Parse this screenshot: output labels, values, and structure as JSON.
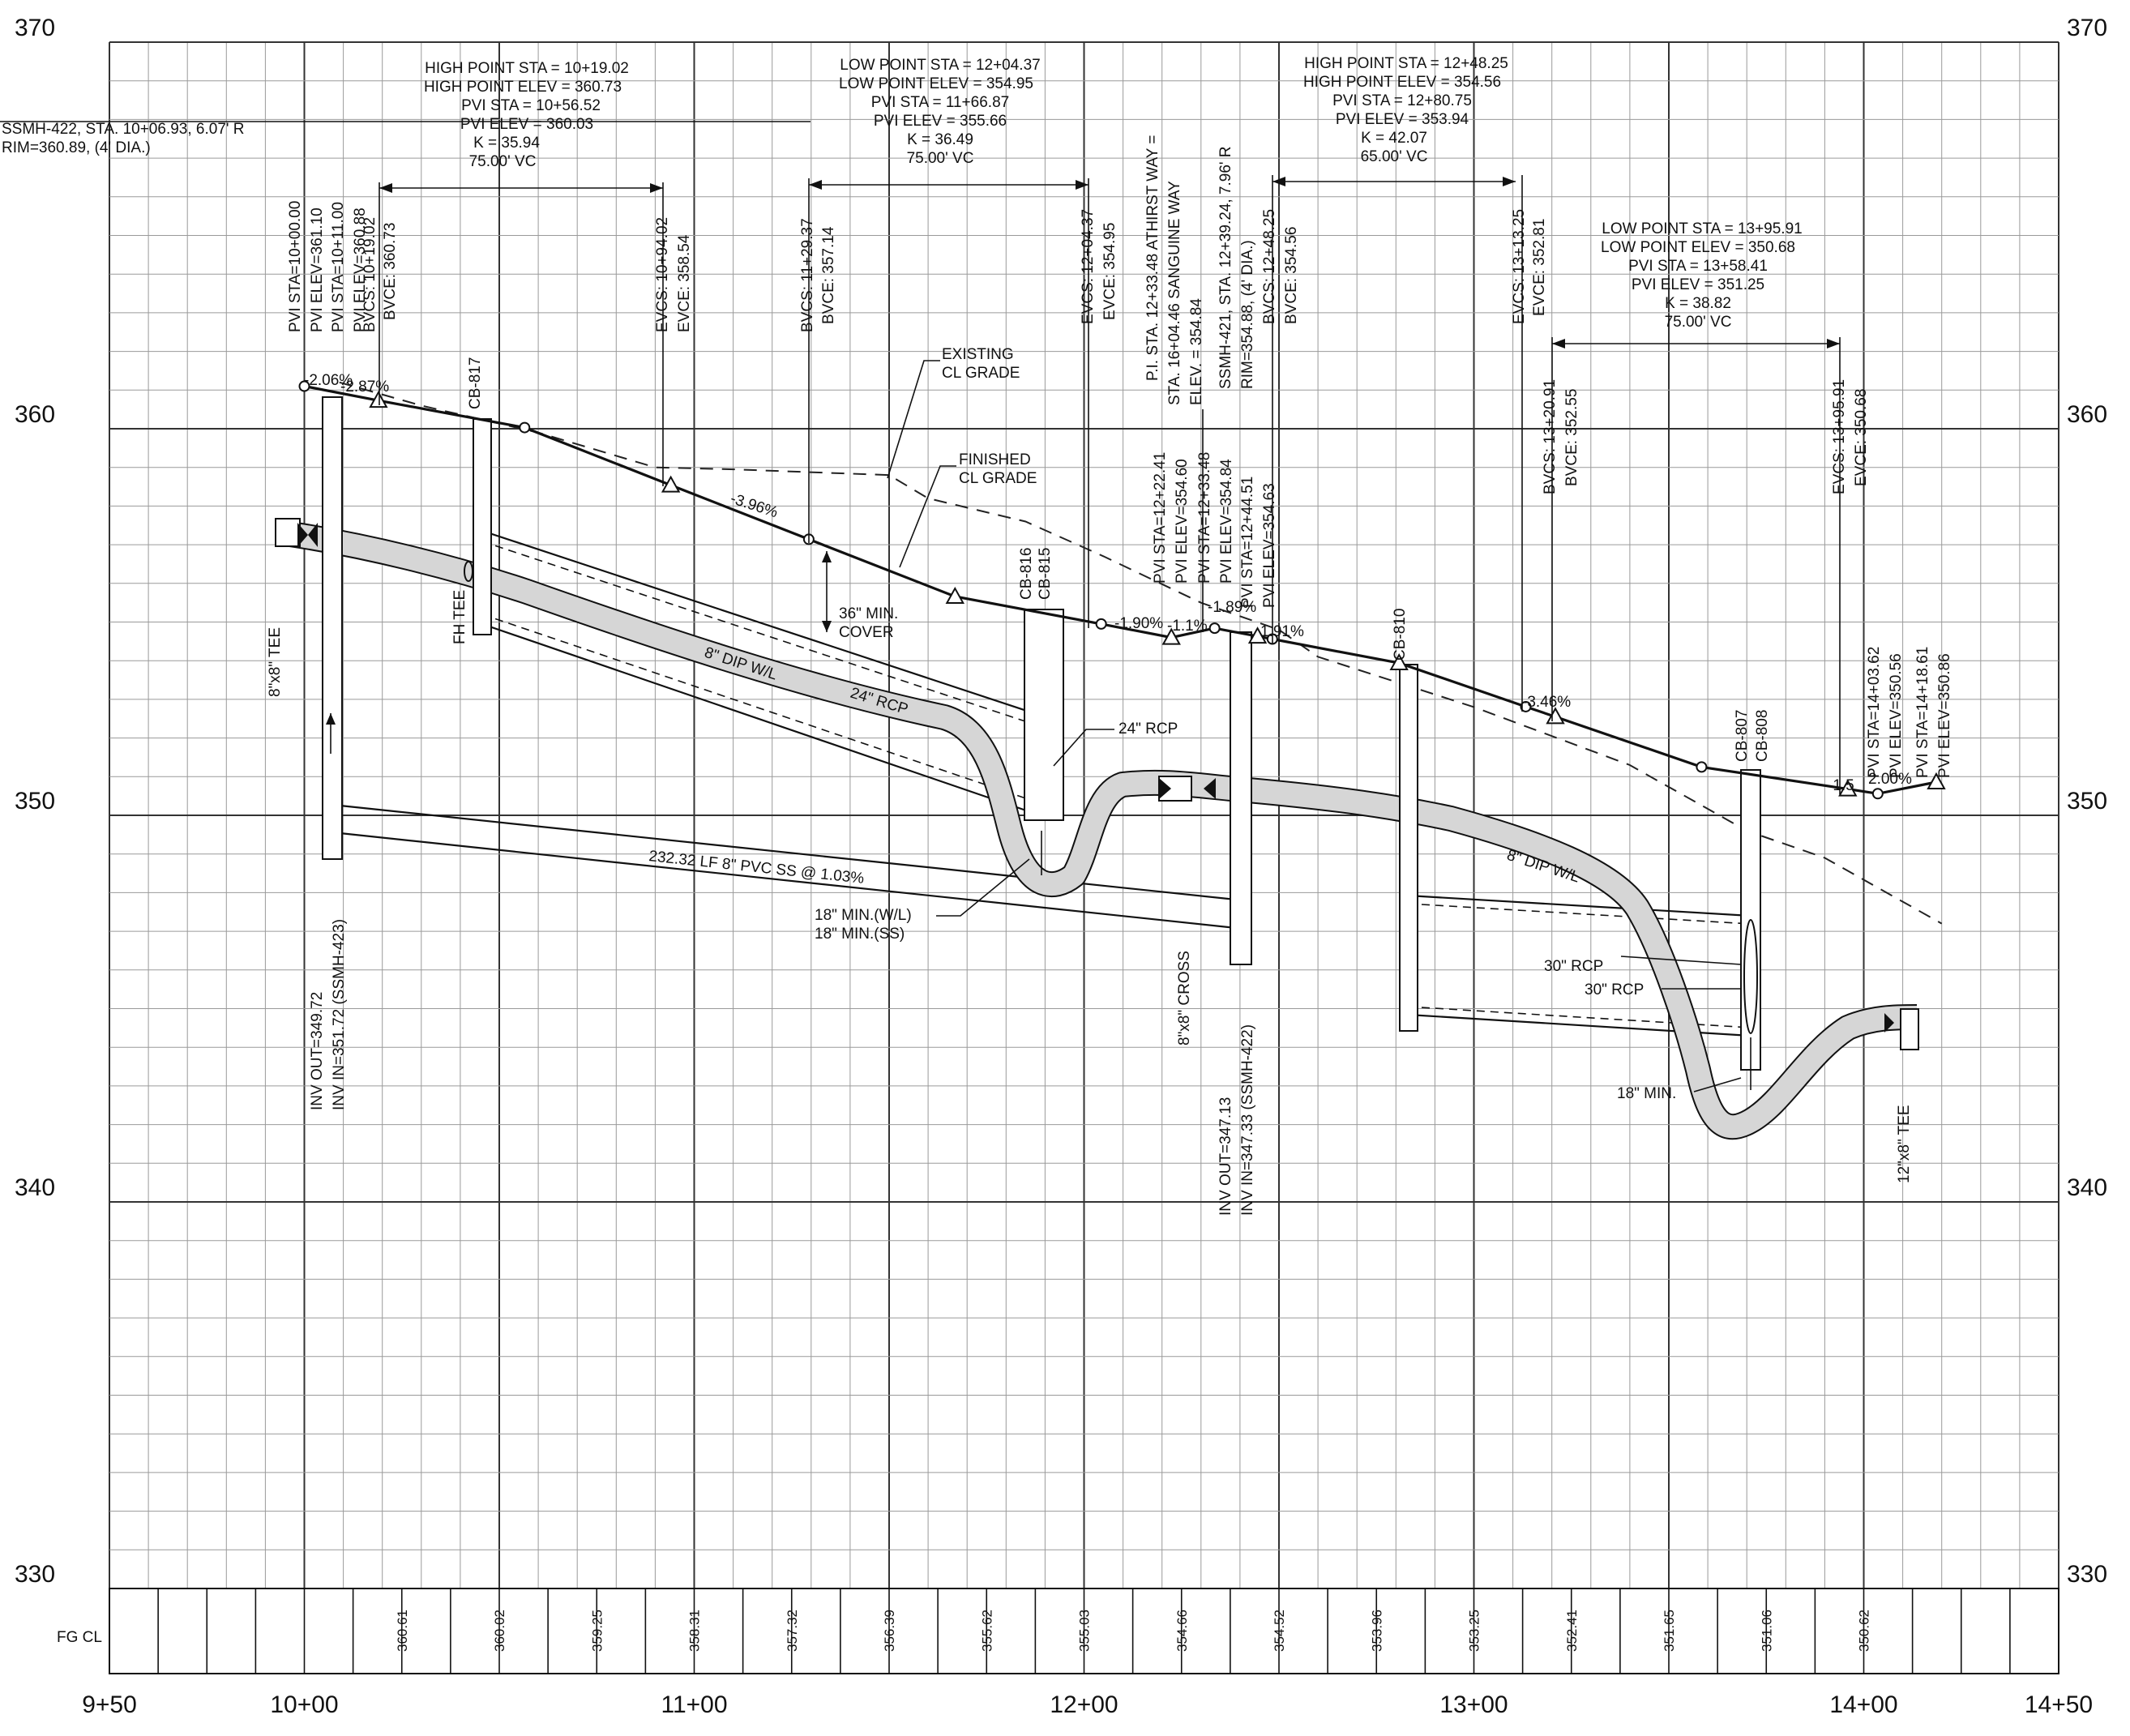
{
  "axes": {
    "y_ticks": [
      {
        "value": 370,
        "label": "370"
      },
      {
        "value": 360,
        "label": "360"
      },
      {
        "value": 350,
        "label": "350"
      },
      {
        "value": 340,
        "label": "340"
      },
      {
        "value": 330,
        "label": "330"
      }
    ],
    "x_ticks": [
      {
        "value": 950,
        "label": "9+50"
      },
      {
        "value": 1000,
        "label": "10+00"
      },
      {
        "value": 1100,
        "label": "11+00"
      },
      {
        "value": 1200,
        "label": "12+00"
      },
      {
        "value": 1300,
        "label": "13+00"
      },
      {
        "value": 1400,
        "label": "14+00"
      },
      {
        "value": 1450,
        "label": "14+50"
      }
    ],
    "x_range": [
      950,
      1450
    ],
    "y_range": [
      330,
      370
    ]
  },
  "finished_grade": {
    "label": "FINISHED CL GRADE",
    "points": [
      [
        1000,
        361.1
      ],
      [
        1019,
        360.73
      ],
      [
        1056.5,
        360.03
      ],
      [
        1094,
        358.54
      ],
      [
        1129.4,
        357.14
      ],
      [
        1166.9,
        355.66
      ],
      [
        1204.4,
        354.95
      ],
      [
        1222.4,
        354.6
      ],
      [
        1233.5,
        354.84
      ],
      [
        1244.5,
        354.63
      ],
      [
        1248.3,
        354.56
      ],
      [
        1280.8,
        353.94
      ],
      [
        1313.3,
        352.81
      ],
      [
        1320.9,
        352.55
      ],
      [
        1358.4,
        351.25
      ],
      [
        1395.9,
        350.68
      ],
      [
        1403.6,
        350.56
      ],
      [
        1418.6,
        350.86
      ]
    ]
  },
  "existing_grade": {
    "label": "EXISTING CL GRADE",
    "points": [
      [
        1009,
        361.2
      ],
      [
        1030,
        360.6
      ],
      [
        1060,
        359.9
      ],
      [
        1090,
        359.0
      ],
      [
        1110,
        358.95
      ],
      [
        1150,
        358.8
      ],
      [
        1160,
        358.2
      ],
      [
        1185,
        357.6
      ],
      [
        1205,
        356.7
      ],
      [
        1230,
        355.5
      ],
      [
        1250,
        354.8
      ],
      [
        1260,
        354.1
      ],
      [
        1300,
        352.8
      ],
      [
        1340,
        351.3
      ],
      [
        1370,
        349.6
      ],
      [
        1390,
        348.9
      ],
      [
        1420,
        347.2
      ]
    ]
  },
  "fg_cl": {
    "label": "FG CL",
    "values": [
      {
        "sta": 1025,
        "text": "360.61"
      },
      {
        "sta": 1050,
        "text": "360.02"
      },
      {
        "sta": 1075,
        "text": "359.25"
      },
      {
        "sta": 1100,
        "text": "358.31"
      },
      {
        "sta": 1125,
        "text": "357.32"
      },
      {
        "sta": 1150,
        "text": "356.39"
      },
      {
        "sta": 1175,
        "text": "355.62"
      },
      {
        "sta": 1200,
        "text": "355.03"
      },
      {
        "sta": 1225,
        "text": "354.66"
      },
      {
        "sta": 1250,
        "text": "354.52"
      },
      {
        "sta": 1275,
        "text": "353.96"
      },
      {
        "sta": 1300,
        "text": "353.25"
      },
      {
        "sta": 1325,
        "text": "352.41"
      },
      {
        "sta": 1350,
        "text": "351.65"
      },
      {
        "sta": 1375,
        "text": "351.06"
      },
      {
        "sta": 1400,
        "text": "350.62"
      }
    ]
  },
  "curve_blocks": {
    "c1": [
      "HIGH POINT STA = 10+19.02",
      "HIGH POINT ELEV = 360.73",
      "PVI STA = 10+56.52",
      "PVI ELEV = 360.03",
      "K = 35.94",
      "75.00' VC"
    ],
    "c2": [
      "LOW POINT STA = 12+04.37",
      "LOW POINT ELEV = 354.95",
      "PVI STA = 11+66.87",
      "PVI ELEV = 355.66",
      "K = 36.49",
      "75.00' VC"
    ],
    "c3": [
      "HIGH POINT STA = 12+48.25",
      "HIGH POINT ELEV = 354.56",
      "PVI STA = 12+80.75",
      "PVI ELEV = 353.94",
      "K = 42.07",
      "65.00' VC"
    ],
    "c4": [
      "LOW POINT STA = 13+95.91",
      "LOW POINT ELEV = 350.68",
      "PVI STA = 13+58.41",
      "PVI ELEV = 351.25",
      "K = 38.82",
      "75.00' VC"
    ],
    "ssmh422_top": [
      "SSMH-422, STA. 10+06.93, 6.07' R",
      "RIM=360.89, (4' DIA.)"
    ]
  },
  "vertical_labels": {
    "pvi_10": [
      "PVI STA=10+00.00",
      "PVI ELEV=361.10"
    ],
    "pvi_1011": [
      "PVI STA=10+11.00",
      "PVI ELEV=360.88"
    ],
    "bvcs1": [
      "BVCS: 10+19.02",
      "BVCE: 360.73"
    ],
    "evcs1": [
      "EVCS: 10+94.02",
      "EVCE: 358.54"
    ],
    "bvcs2": [
      "BVCS: 11+29.37",
      "BVCE: 357.14"
    ],
    "evcs2": [
      "EVCS: 12+04.37",
      "EVCE: 354.95"
    ],
    "pi_athirst": [
      "P.I. STA. 12+33.48 ATHIRST WAY =",
      "STA. 16+04.46 SANGUINE WAY",
      "ELEV. = 354.84"
    ],
    "pvi_1222": [
      "PVI STA=12+22.41",
      "PVI ELEV=354.60"
    ],
    "pvi_1233": [
      "PVI STA=12+33.48",
      "PVI ELEV=354.84"
    ],
    "ssmh421": [
      "SSMH-421, STA. 12+39.24, 7.96' R",
      "RIM=354.88, (4' DIA.)"
    ],
    "pvi_1244": [
      "PVI STA=12+44.51",
      "PVI ELEV=354.63"
    ],
    "bvcs3": [
      "BVCS: 12+48.25",
      "BVCE: 354.56"
    ],
    "evcs3": [
      "EVCS: 13+13.25",
      "EVCE: 352.81"
    ],
    "bvcs4": [
      "BVCS: 13+20.91",
      "BVCE: 352.55"
    ],
    "evcs4": [
      "EVCS: 13+95.91",
      "EVCE: 350.68"
    ],
    "pvi_1403": [
      "PVI STA=14+03.62",
      "PVI ELEV=350.56"
    ],
    "pvi_1418": [
      "PVI STA=14+18.61",
      "PVI ELEV=350.86"
    ],
    "inv_ssmh423": [
      "INV OUT=349.72",
      "INV IN=351.72 (SSMH-423)"
    ],
    "inv_ssmh422": [
      "INV OUT=347.13",
      "INV IN=347.33 (SSMH-422)"
    ]
  },
  "callouts": {
    "cb817": "CB-817",
    "cb816": "CB-816",
    "cb815": "CB-815",
    "cb810": "CB-810",
    "cb807": "CB-807",
    "cb808": "CB-808",
    "fh_tee": "FH TEE",
    "tee_8x8": "8\"x8\" TEE",
    "cross_8x8": "8\"x8\" CROSS",
    "tee_12x8": "12\"x8\" TEE",
    "min_cover_1": "36\" MIN.",
    "min_cover_2": "COVER",
    "rcp24_a": "24\" RCP",
    "rcp24_b": "24\" RCP",
    "dip_wl_1": "8\" DIP W/L",
    "dip_wl_2": "8\" DIP W/L",
    "pvc_ss": "232.32 LF 8\" PVC SS @ 1.03%",
    "min_wl": "18\" MIN.(W/L)",
    "min_ss": "18\" MIN.(SS)",
    "rcp30_a": "30\" RCP",
    "rcp30_b": "30\" RCP",
    "min_18": "18\" MIN.",
    "existing_1": "EXISTING",
    "existing_2": "CL GRADE",
    "finished_1": "FINISHED",
    "finished_2": "CL GRADE",
    "slope_206": "-2.06%",
    "slope_287": "-2.87%",
    "slope_396": "-3.96%",
    "slope_190": "-1.90%",
    "slope_11": "-1.1%",
    "slope_189": "-1.89%",
    "slope_191": "1.91%",
    "slope_346": "-3.46%",
    "slope_15": "-1.5",
    "slope_200": "2.00%"
  }
}
